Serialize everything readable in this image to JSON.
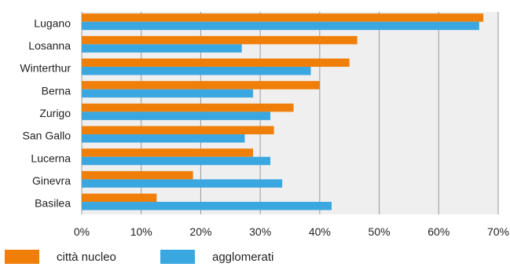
{
  "chart_data": {
    "type": "bar",
    "orientation": "horizontal",
    "categories": [
      "Lugano",
      "Losanna",
      "Winterthur",
      "Berna",
      "Zurigo",
      "San Gallo",
      "Lucerna",
      "Ginevra",
      "Basilea"
    ],
    "series": [
      {
        "name": "città nucleo",
        "color": "#f07f09",
        "values": [
          67.5,
          46.3,
          45,
          40,
          35.6,
          32.3,
          28.8,
          18.7,
          12.6
        ]
      },
      {
        "name": "agglomerati",
        "color": "#3aa7e0",
        "values": [
          66.8,
          26.9,
          38.5,
          28.8,
          31.7,
          27.4,
          31.7,
          33.7,
          42
        ]
      }
    ],
    "xlim": [
      0,
      70
    ],
    "xticks": [
      "0%",
      "10%",
      "20%",
      "30%",
      "40%",
      "50%",
      "60%",
      "70%"
    ],
    "grid": true,
    "plot_background": "#efefef",
    "legend_position": "bottom-left"
  }
}
